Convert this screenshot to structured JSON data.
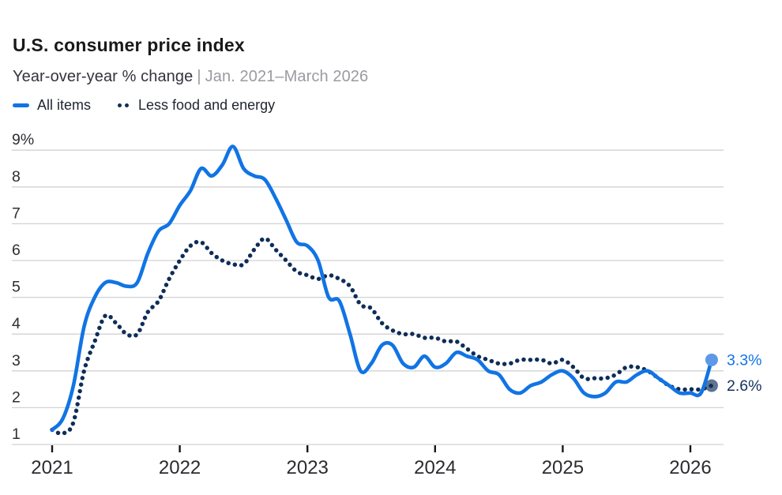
{
  "header": {
    "title": "U.S. consumer price index",
    "subtitle": "Year-over-year % change",
    "separator": "|",
    "date_range": "Jan. 2021–March 2026"
  },
  "legend": {
    "items": [
      {
        "label": "All items"
      },
      {
        "label": "Less food and energy"
      }
    ]
  },
  "colors": {
    "all_items_line": "#1174e4",
    "core_line": "#0e2d58",
    "all_items_end_dot": "#5d99e6",
    "core_end_dot": "#5f7493",
    "all_items_end_label": "#1174e4",
    "core_end_label": "#13305c",
    "gridline": "#d2d2d6",
    "axis_tick": "#17171c",
    "y_tick_label": "#2e2e34",
    "x_tick_label": "#2b2b30"
  },
  "chart_data": {
    "type": "line",
    "title": "U.S. consumer price index",
    "subtitle": "Year-over-year % change | Jan. 2021–March 2026",
    "x_interval": "monthly",
    "x_start": "2021-01",
    "x_end": "2026-03",
    "ylim": [
      1,
      9
    ],
    "grid": "horizontal",
    "legend_position": "top-left",
    "y_ticks": [
      {
        "label": "9%",
        "value": 9
      },
      {
        "label": "8",
        "value": 8
      },
      {
        "label": "7",
        "value": 7
      },
      {
        "label": "6",
        "value": 6
      },
      {
        "label": "5",
        "value": 5
      },
      {
        "label": "4",
        "value": 4
      },
      {
        "label": "3",
        "value": 3
      },
      {
        "label": "2",
        "value": 2
      },
      {
        "label": "1",
        "value": 1
      }
    ],
    "x_ticks": [
      {
        "label": "2021"
      },
      {
        "label": "2022"
      },
      {
        "label": "2023"
      },
      {
        "label": "2024"
      },
      {
        "label": "2025"
      },
      {
        "label": "2026"
      }
    ],
    "series": [
      {
        "name": "All items",
        "key": "all-items",
        "style": "solid",
        "end_label": "3.3%",
        "values": [
          1.4,
          1.7,
          2.6,
          4.2,
          5.0,
          5.4,
          5.4,
          5.3,
          5.4,
          6.2,
          6.8,
          7.0,
          7.5,
          7.9,
          8.5,
          8.3,
          8.6,
          9.1,
          8.5,
          8.3,
          8.2,
          7.7,
          7.1,
          6.5,
          6.4,
          6.0,
          5.0,
          4.9,
          4.0,
          3.0,
          3.2,
          3.7,
          3.7,
          3.2,
          3.1,
          3.4,
          3.1,
          3.2,
          3.5,
          3.4,
          3.3,
          3.0,
          2.9,
          2.5,
          2.4,
          2.6,
          2.7,
          2.9,
          3.0,
          2.8,
          2.4,
          2.3,
          2.4,
          2.7,
          2.7,
          2.9,
          3.0,
          2.8,
          2.6,
          2.4,
          2.4,
          2.4,
          3.3
        ]
      },
      {
        "name": "Less food and energy",
        "key": "less-food-and-energy",
        "style": "dotted",
        "end_label": "2.6%",
        "values": [
          1.4,
          1.3,
          1.6,
          3.0,
          3.8,
          4.5,
          4.3,
          4.0,
          4.0,
          4.6,
          4.9,
          5.5,
          6.0,
          6.4,
          6.5,
          6.2,
          6.0,
          5.9,
          5.9,
          6.3,
          6.6,
          6.3,
          6.0,
          5.7,
          5.6,
          5.5,
          5.6,
          5.5,
          5.3,
          4.8,
          4.7,
          4.3,
          4.1,
          4.0,
          4.0,
          3.9,
          3.9,
          3.8,
          3.8,
          3.6,
          3.4,
          3.3,
          3.2,
          3.2,
          3.3,
          3.3,
          3.3,
          3.2,
          3.3,
          3.1,
          2.8,
          2.8,
          2.8,
          2.9,
          3.1,
          3.1,
          3.0,
          2.8,
          2.6,
          2.5,
          2.5,
          2.5,
          2.6
        ]
      }
    ]
  }
}
